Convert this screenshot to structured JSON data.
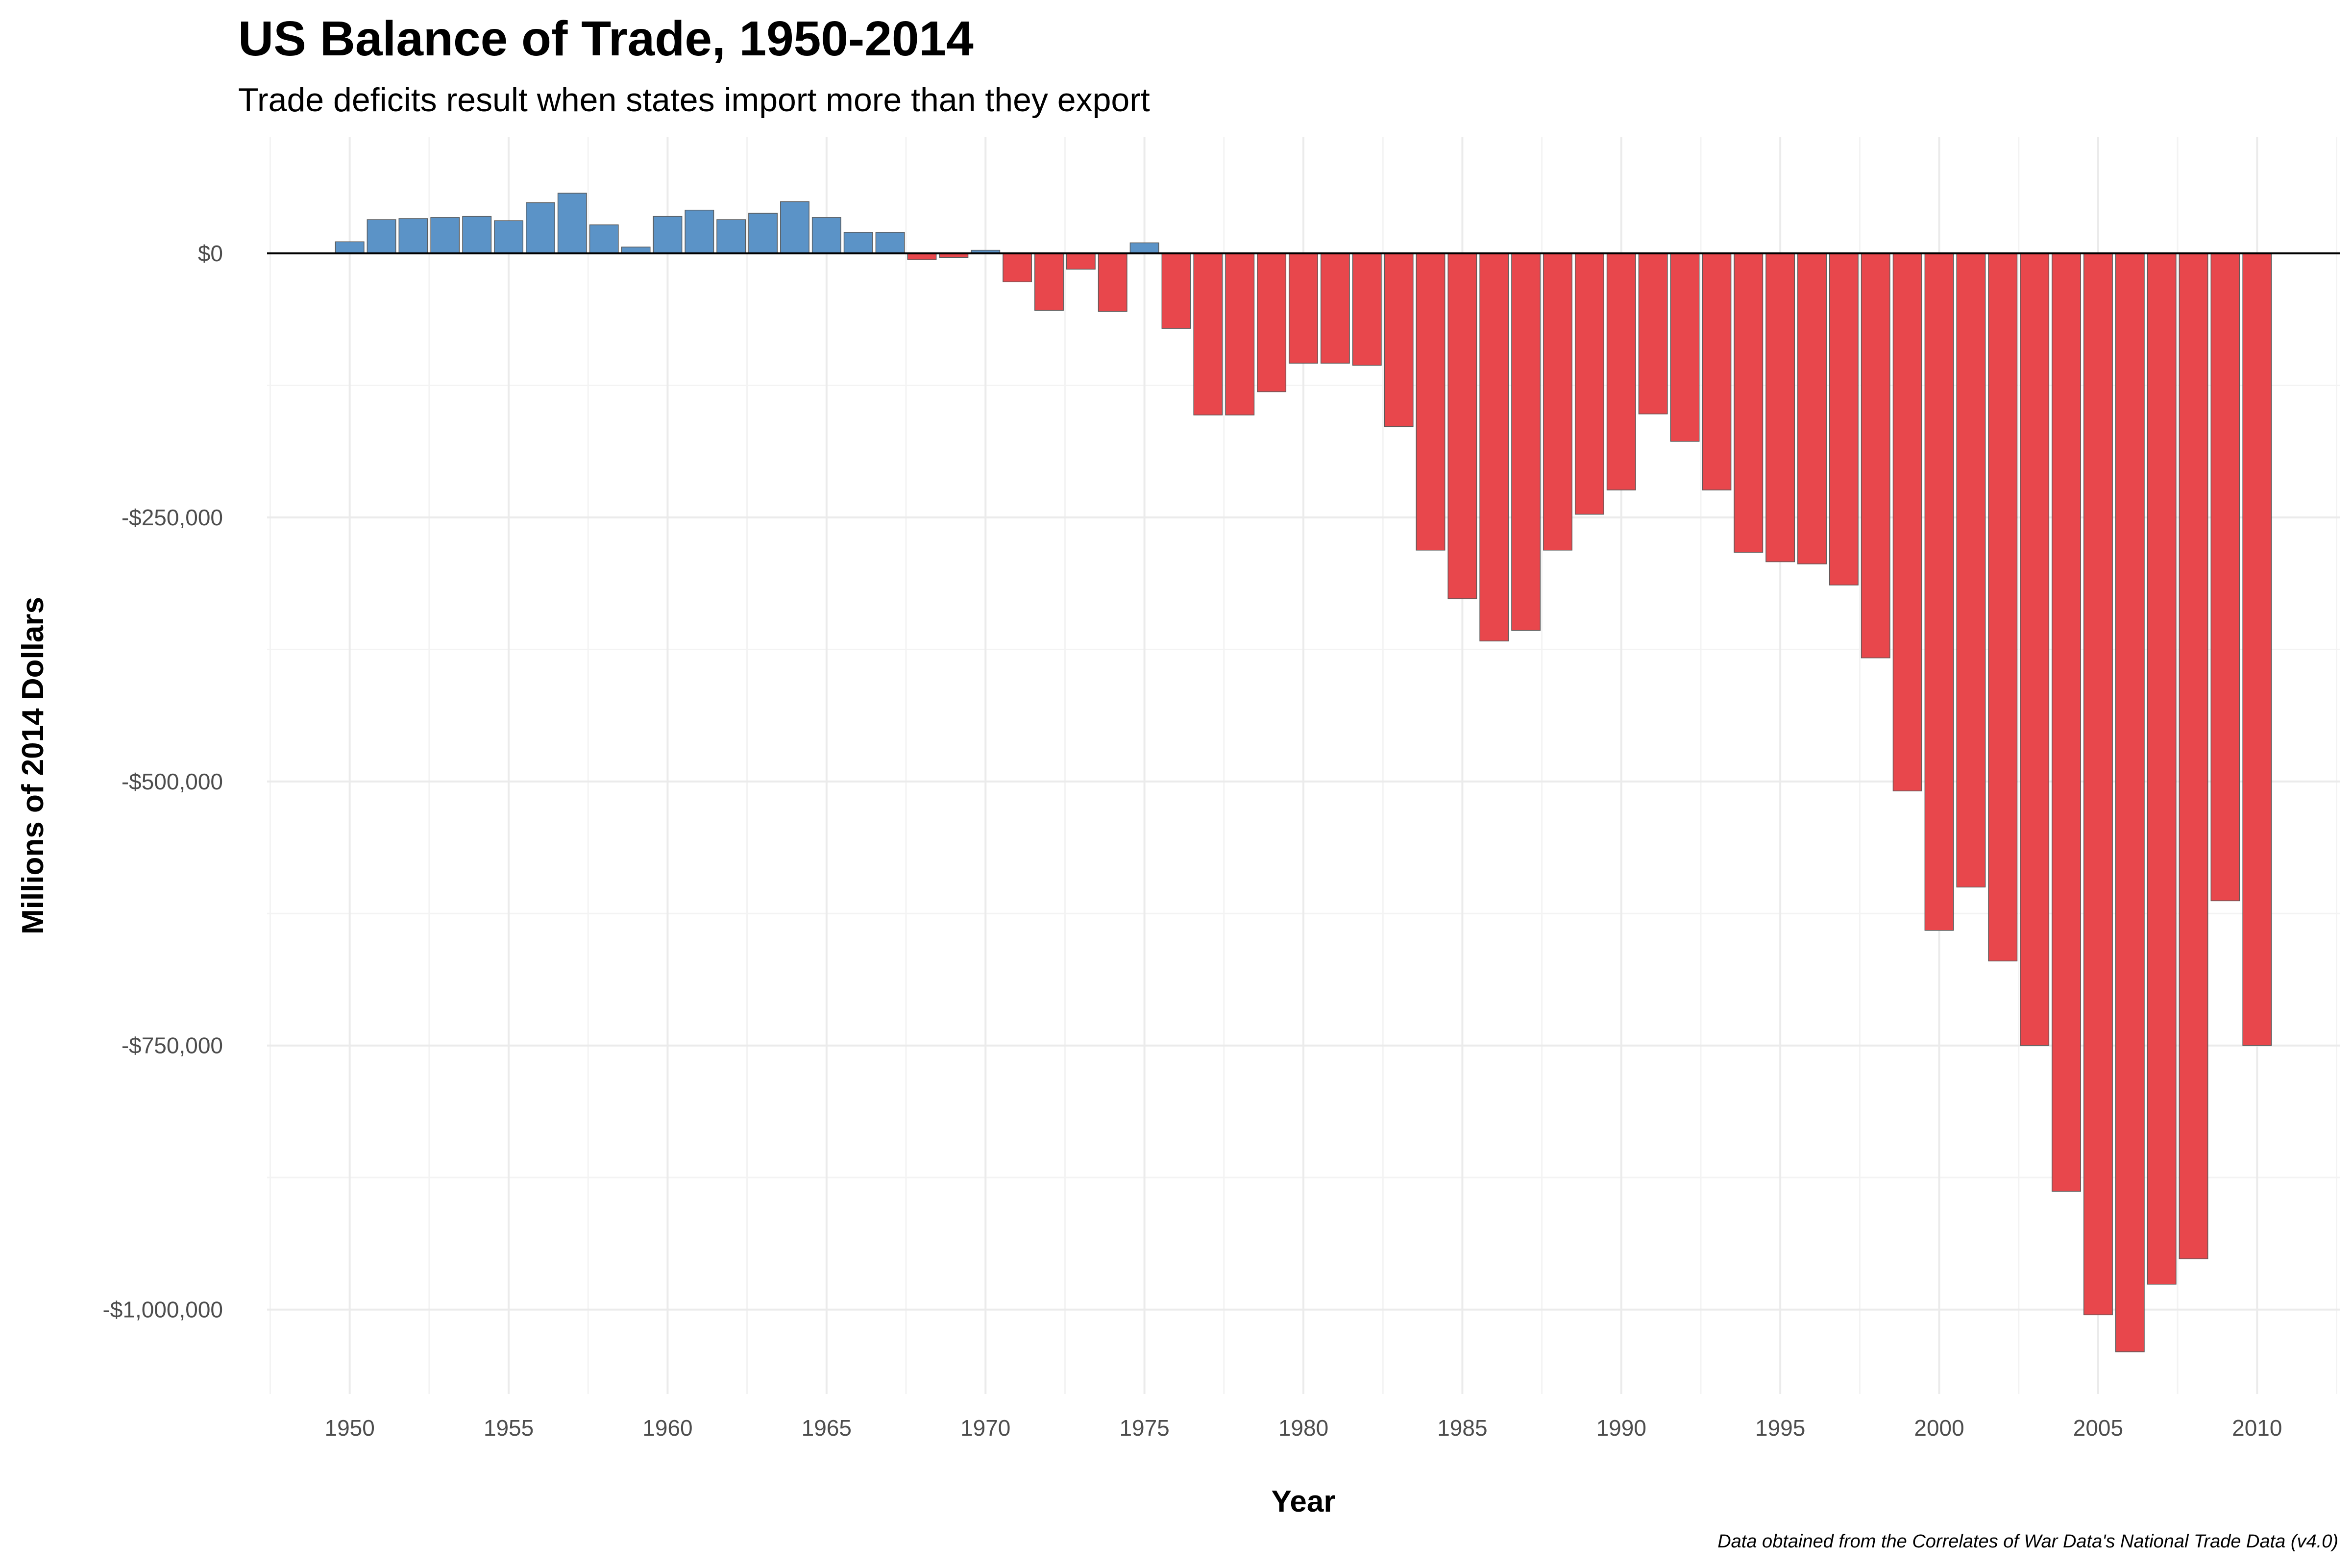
{
  "title": "US Balance of Trade, 1950-2014",
  "subtitle": "Trade deficits result when states import more than they export",
  "caption": "Data obtained from the Correlates of War Data's National Trade Data (v4.0)",
  "colors": {
    "surplus": "#5b93c7",
    "deficit": "#e8474c",
    "grid": "#ebebeb",
    "zero_line": "#000000"
  },
  "chart_data": {
    "type": "bar",
    "xlabel": "Year",
    "ylabel": "Millions of 2014 Dollars",
    "ylim": [
      -1080000,
      110000
    ],
    "xlim": [
      1947.4,
      2012.6
    ],
    "y_ticks": [
      0,
      -250000,
      -500000,
      -750000,
      -1000000
    ],
    "y_tick_labels": [
      "$0",
      "-$250,000",
      "-$500,000",
      "-$750,000",
      "-$1,000,000"
    ],
    "x_ticks": [
      1950,
      1955,
      1960,
      1965,
      1970,
      1975,
      1980,
      1985,
      1990,
      1995,
      2000,
      2005,
      2010
    ],
    "x_tick_labels": [
      "1950",
      "1955",
      "1960",
      "1965",
      "1970",
      "1975",
      "1980",
      "1985",
      "1990",
      "1995",
      "2000",
      "2005",
      "2010"
    ],
    "grid": true,
    "legend": "none",
    "x": [
      1950,
      1951,
      1952,
      1953,
      1954,
      1955,
      1956,
      1957,
      1958,
      1959,
      1960,
      1961,
      1962,
      1963,
      1964,
      1965,
      1966,
      1967,
      1968,
      1969,
      1970,
      1971,
      1972,
      1973,
      1974,
      1975,
      1976,
      1977,
      1978,
      1979,
      1980,
      1981,
      1982,
      1983,
      1984,
      1985,
      1986,
      1987,
      1988,
      1989,
      1990,
      1991,
      1992,
      1993,
      1994,
      1995,
      1996,
      1997,
      1998,
      1999,
      2000,
      2001,
      2002,
      2003,
      2004,
      2005,
      2006,
      2007,
      2008,
      2009,
      2010
    ],
    "values": [
      11000,
      32000,
      33000,
      34000,
      35000,
      31000,
      48000,
      57000,
      27000,
      6000,
      35000,
      41000,
      32000,
      38000,
      49000,
      34000,
      20000,
      20000,
      -6000,
      -4000,
      3000,
      -27000,
      -54000,
      -15000,
      -55000,
      10000,
      -71000,
      -153000,
      -153000,
      -131000,
      -104000,
      -104000,
      -106000,
      -164000,
      -281000,
      -327000,
      -367000,
      -357000,
      -281000,
      -247000,
      -224000,
      -152000,
      -178000,
      -224000,
      -283000,
      -292000,
      -294000,
      -314000,
      -383000,
      -509000,
      -641000,
      -600000,
      -670000,
      -750000,
      -888000,
      -1005000,
      -1040000,
      -976000,
      -952000,
      -613000,
      -750000
    ]
  }
}
